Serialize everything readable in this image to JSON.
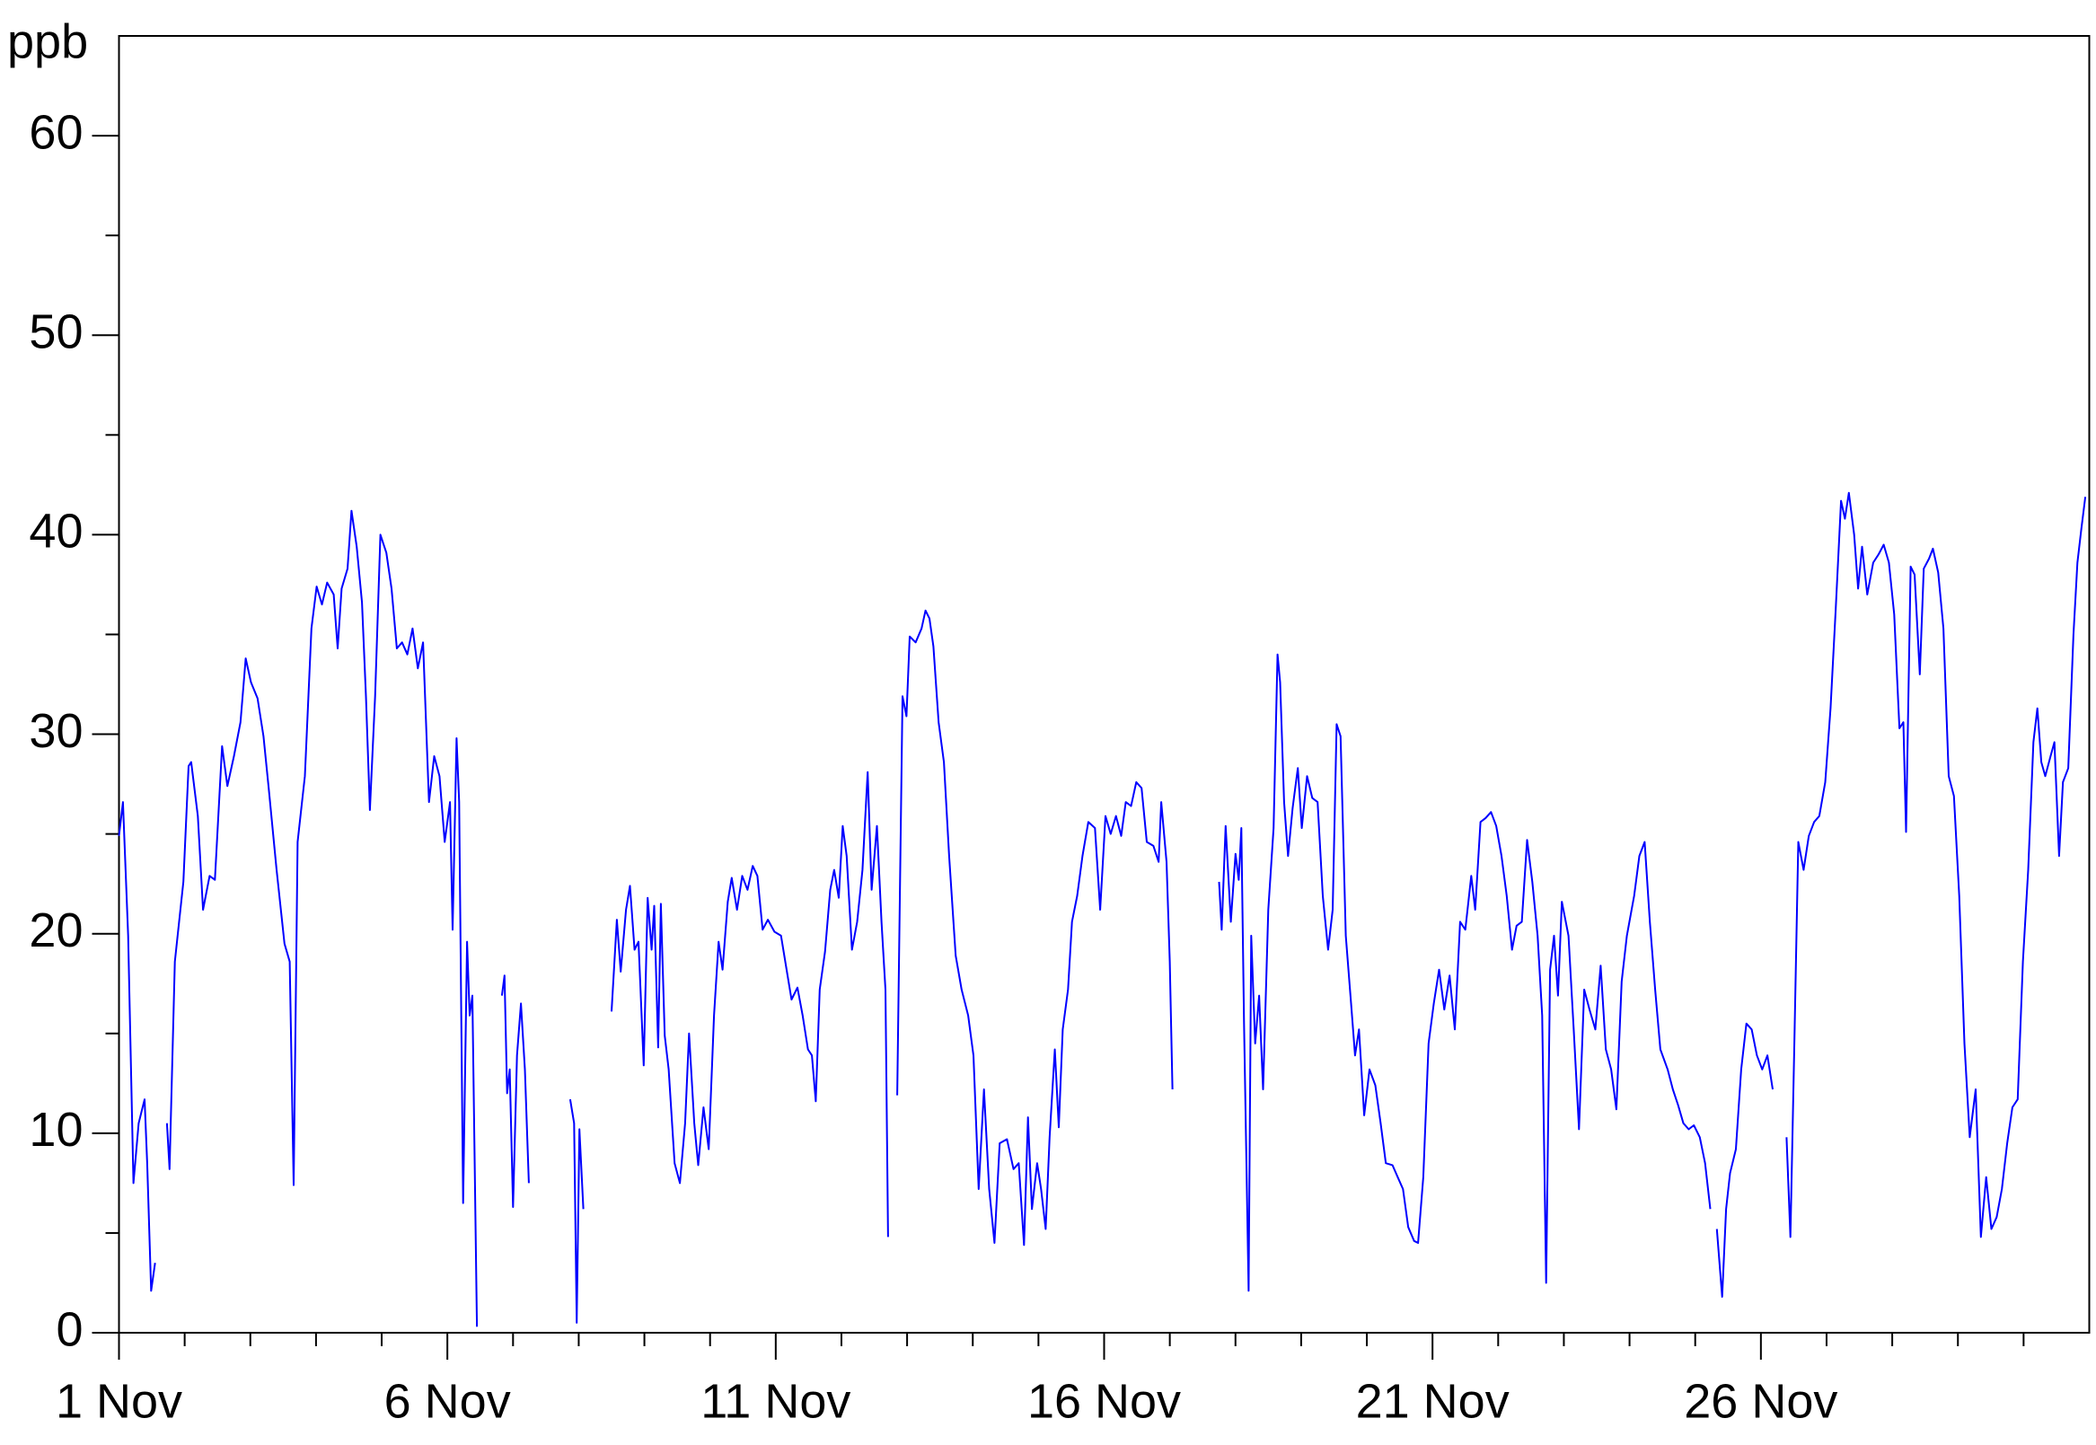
{
  "chart_data": {
    "type": "line",
    "y_label": "ppb",
    "xlim": [
      1,
      31
    ],
    "ylim": [
      0,
      65
    ],
    "xticks": [
      {
        "value": 1,
        "label": "1 Nov"
      },
      {
        "value": 6,
        "label": "6 Nov"
      },
      {
        "value": 11,
        "label": "11 Nov"
      },
      {
        "value": 16,
        "label": "16 Nov"
      },
      {
        "value": 21,
        "label": "21 Nov"
      },
      {
        "value": 26,
        "label": "26 Nov"
      }
    ],
    "xminor_ticks": [
      2,
      3,
      4,
      5,
      7,
      8,
      9,
      10,
      12,
      13,
      14,
      15,
      17,
      18,
      19,
      20,
      22,
      23,
      24,
      25,
      27,
      28,
      29,
      30
    ],
    "yticks": [
      0,
      10,
      20,
      30,
      40,
      50,
      60
    ],
    "yminor_ticks": [
      5,
      15,
      25,
      35,
      45,
      55
    ],
    "x": [
      1.0,
      1.06,
      1.14,
      1.22,
      1.3,
      1.39,
      1.43,
      1.49,
      1.55,
      null,
      1.73,
      1.77,
      1.85,
      1.98,
      2.06,
      2.1,
      2.2,
      2.28,
      2.38,
      2.46,
      2.57,
      2.65,
      2.75,
      2.85,
      2.93,
      3.01,
      3.11,
      3.2,
      3.28,
      3.4,
      3.52,
      3.6,
      3.66,
      3.72,
      3.83,
      3.93,
      4.01,
      4.09,
      4.17,
      4.27,
      4.33,
      4.39,
      4.48,
      4.54,
      4.62,
      4.7,
      4.76,
      4.82,
      4.9,
      4.98,
      5.07,
      5.15,
      5.23,
      5.31,
      5.39,
      5.47,
      5.55,
      5.63,
      5.72,
      5.8,
      5.88,
      5.96,
      6.04,
      6.08,
      6.14,
      6.18,
      6.24,
      6.3,
      6.34,
      6.38,
      6.45,
      null,
      6.83,
      6.87,
      6.91,
      6.95,
      7.0,
      7.06,
      7.12,
      7.18,
      7.24,
      null,
      7.87,
      7.93,
      7.97,
      8.01,
      8.07,
      null,
      8.5,
      8.58,
      8.64,
      8.72,
      8.78,
      8.85,
      8.91,
      8.99,
      9.05,
      9.11,
      9.15,
      9.21,
      9.25,
      9.31,
      9.37,
      9.46,
      9.54,
      9.62,
      9.68,
      9.76,
      9.82,
      9.9,
      9.98,
      10.06,
      10.13,
      10.19,
      10.27,
      10.33,
      10.41,
      10.49,
      10.57,
      10.65,
      10.72,
      10.8,
      10.88,
      10.98,
      11.08,
      11.18,
      11.24,
      11.33,
      11.41,
      11.49,
      11.55,
      11.61,
      11.67,
      11.75,
      11.83,
      11.89,
      11.96,
      12.02,
      12.08,
      12.16,
      12.24,
      12.32,
      12.4,
      12.46,
      12.54,
      12.61,
      12.67,
      12.71,
      null,
      12.85,
      12.93,
      12.99,
      13.04,
      13.13,
      13.22,
      13.28,
      13.34,
      13.4,
      13.48,
      13.56,
      13.64,
      13.74,
      13.83,
      13.93,
      14.01,
      14.09,
      14.17,
      14.25,
      14.33,
      14.41,
      14.52,
      14.62,
      14.7,
      14.78,
      14.84,
      14.9,
      14.98,
      15.04,
      15.11,
      15.17,
      15.25,
      15.31,
      15.37,
      15.45,
      15.51,
      15.59,
      15.67,
      15.76,
      15.86,
      15.94,
      16.02,
      16.1,
      16.18,
      16.26,
      16.33,
      16.41,
      16.49,
      16.57,
      16.65,
      16.75,
      16.83,
      16.87,
      16.95,
      17.0,
      17.04,
      null,
      17.75,
      17.79,
      17.85,
      17.93,
      18.0,
      18.05,
      18.09,
      18.13,
      18.2,
      18.24,
      18.3,
      18.36,
      18.42,
      18.5,
      18.58,
      18.64,
      18.68,
      18.74,
      18.8,
      18.87,
      18.95,
      19.01,
      19.09,
      19.17,
      19.25,
      19.33,
      19.41,
      19.48,
      19.54,
      19.6,
      19.68,
      19.76,
      19.82,
      19.88,
      19.96,
      20.04,
      20.13,
      20.21,
      20.29,
      20.39,
      20.47,
      20.55,
      20.63,
      20.72,
      20.78,
      20.86,
      20.94,
      21.02,
      21.1,
      21.18,
      21.26,
      21.34,
      21.42,
      21.5,
      21.59,
      21.65,
      21.73,
      21.81,
      21.89,
      21.97,
      22.05,
      22.13,
      22.21,
      22.28,
      22.36,
      22.44,
      22.52,
      22.6,
      22.67,
      22.73,
      22.79,
      22.85,
      22.91,
      22.97,
      23.07,
      23.15,
      23.23,
      23.31,
      23.39,
      23.48,
      23.56,
      23.64,
      23.72,
      23.8,
      23.88,
      23.96,
      24.07,
      24.15,
      24.23,
      24.31,
      24.39,
      24.47,
      24.58,
      24.66,
      24.74,
      24.82,
      24.9,
      24.98,
      25.07,
      25.15,
      25.23,
      null,
      25.33,
      25.41,
      25.47,
      25.53,
      25.62,
      25.7,
      25.78,
      25.86,
      25.94,
      26.02,
      26.1,
      26.18,
      null,
      26.39,
      26.45,
      26.51,
      26.57,
      26.65,
      26.73,
      26.81,
      26.89,
      26.98,
      27.06,
      27.14,
      27.22,
      27.28,
      27.34,
      27.42,
      27.48,
      27.54,
      27.62,
      27.71,
      27.79,
      27.87,
      27.95,
      28.03,
      28.11,
      28.17,
      28.21,
      28.28,
      28.34,
      28.42,
      28.48,
      28.56,
      28.62,
      28.7,
      28.78,
      28.86,
      28.94,
      29.02,
      29.1,
      29.18,
      29.27,
      29.35,
      29.43,
      29.51,
      29.59,
      29.67,
      29.75,
      29.83,
      29.91,
      29.99,
      30.07,
      30.15,
      30.21,
      30.27,
      30.33,
      30.41,
      30.47,
      30.54,
      30.6,
      30.68,
      30.76,
      30.82,
      30.88,
      30.94
    ],
    "series": [
      {
        "color": "#0000ff",
        "values": [
          24.9,
          26.6,
          19.9,
          7.5,
          10.5,
          11.7,
          8.5,
          2.1,
          3.5,
          null,
          10.5,
          8.2,
          18.6,
          22.6,
          28.4,
          28.6,
          25.9,
          21.2,
          22.9,
          22.7,
          29.4,
          27.4,
          28.9,
          30.6,
          33.8,
          32.6,
          31.8,
          29.9,
          27.3,
          23.2,
          19.5,
          18.6,
          7.4,
          24.6,
          27.9,
          35.3,
          37.4,
          36.5,
          37.6,
          37.0,
          34.3,
          37.3,
          38.3,
          41.2,
          39.4,
          36.6,
          31.9,
          26.2,
          31.9,
          40.0,
          39.1,
          37.3,
          34.3,
          34.6,
          34.0,
          35.3,
          33.3,
          34.6,
          26.6,
          28.9,
          27.9,
          24.6,
          26.6,
          20.2,
          29.8,
          26.6,
          6.5,
          19.6,
          15.9,
          16.9,
          0.3,
          null,
          16.9,
          17.9,
          12.0,
          13.2,
          6.3,
          13.9,
          16.5,
          13.2,
          7.5,
          null,
          11.7,
          10.5,
          0.5,
          10.2,
          6.2,
          null,
          16.1,
          20.7,
          18.1,
          21.2,
          22.4,
          19.2,
          19.6,
          13.4,
          21.8,
          19.2,
          21.4,
          14.3,
          21.5,
          14.9,
          13.2,
          8.5,
          7.5,
          10.5,
          15.0,
          10.5,
          8.4,
          11.3,
          9.2,
          15.9,
          19.6,
          18.2,
          21.6,
          22.8,
          21.2,
          22.9,
          22.2,
          23.4,
          22.9,
          20.2,
          20.7,
          20.1,
          19.9,
          17.9,
          16.7,
          17.3,
          15.9,
          14.2,
          13.9,
          11.6,
          17.2,
          19.1,
          22.2,
          23.2,
          21.8,
          25.4,
          23.9,
          19.2,
          20.6,
          23.2,
          28.1,
          22.2,
          25.4,
          20.6,
          17.2,
          4.8,
          null,
          11.9,
          31.9,
          30.9,
          34.9,
          34.6,
          35.3,
          36.2,
          35.8,
          34.4,
          30.6,
          28.6,
          23.9,
          18.9,
          17.2,
          15.9,
          13.9,
          7.2,
          12.2,
          7.2,
          4.5,
          9.5,
          9.7,
          8.2,
          8.5,
          4.4,
          10.8,
          6.2,
          8.5,
          7.2,
          5.2,
          9.8,
          14.2,
          10.3,
          15.2,
          17.2,
          20.6,
          21.9,
          23.9,
          25.6,
          25.3,
          21.2,
          25.9,
          25.0,
          25.9,
          24.9,
          26.6,
          26.4,
          27.6,
          27.3,
          24.6,
          24.4,
          23.6,
          26.6,
          23.6,
          18.6,
          12.2,
          null,
          22.6,
          20.2,
          25.4,
          20.6,
          24.0,
          22.7,
          25.3,
          15.5,
          2.1,
          19.9,
          14.5,
          16.9,
          12.2,
          21.2,
          25.3,
          34.0,
          32.6,
          26.6,
          23.9,
          26.3,
          28.3,
          25.3,
          27.9,
          26.8,
          26.6,
          21.9,
          19.2,
          21.2,
          30.5,
          29.9,
          19.9,
          16.5,
          13.9,
          15.2,
          10.9,
          13.2,
          12.4,
          10.5,
          8.5,
          8.4,
          7.8,
          7.2,
          5.3,
          4.6,
          4.5,
          7.8,
          14.5,
          16.5,
          18.2,
          16.2,
          17.9,
          15.2,
          20.6,
          20.2,
          22.9,
          21.2,
          25.6,
          25.8,
          26.1,
          25.4,
          23.9,
          21.9,
          19.2,
          20.4,
          20.6,
          24.7,
          22.6,
          19.9,
          15.9,
          2.5,
          18.2,
          19.9,
          16.9,
          21.6,
          19.9,
          15.2,
          10.2,
          17.2,
          16.2,
          15.2,
          18.4,
          14.2,
          13.2,
          11.2,
          17.6,
          19.9,
          21.9,
          23.9,
          24.6,
          20.6,
          17.2,
          14.2,
          13.2,
          12.2,
          11.4,
          10.5,
          10.2,
          10.4,
          9.8,
          8.5,
          6.2,
          null,
          5.2,
          1.8,
          6.2,
          8.0,
          9.2,
          13.2,
          15.5,
          15.2,
          13.9,
          13.2,
          13.9,
          12.2,
          null,
          9.8,
          4.8,
          14.5,
          24.6,
          23.2,
          24.9,
          25.6,
          25.9,
          27.6,
          31.3,
          36.3,
          41.7,
          40.8,
          42.1,
          40.0,
          37.3,
          39.4,
          37.0,
          38.6,
          39.0,
          39.5,
          38.6,
          36.0,
          30.3,
          30.6,
          25.1,
          38.4,
          38.0,
          33.0,
          38.3,
          38.8,
          39.3,
          38.1,
          35.3,
          27.9,
          26.9,
          21.9,
          14.5,
          9.8,
          12.2,
          4.8,
          7.8,
          5.2,
          5.8,
          7.2,
          9.5,
          11.3,
          11.7,
          18.6,
          23.2,
          29.6,
          31.3,
          28.6,
          27.9,
          28.9,
          29.6,
          23.9,
          27.6,
          28.3,
          35.0,
          38.6,
          40.3,
          41.9
        ]
      }
    ]
  }
}
